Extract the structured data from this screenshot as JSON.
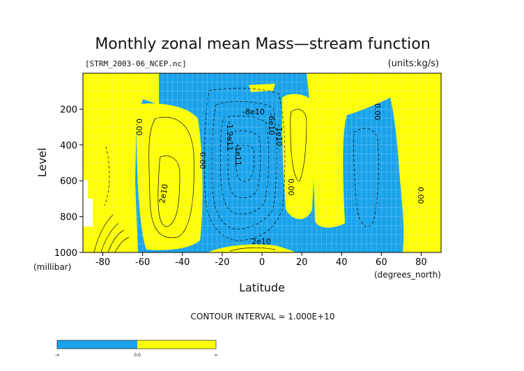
{
  "chart_data": {
    "type": "contour",
    "title": "Monthly zonal mean Mass—stream function",
    "subtitle_left": "[STRM_2003-06_NCEP.nc]",
    "subtitle_right": "(units:kg/s)",
    "xlabel": "Latitude",
    "ylabel": "Level",
    "x_unit": "(degrees_north)",
    "y_unit": "(millibar)",
    "xlim": [
      -90,
      90
    ],
    "ylim": [
      1000,
      0
    ],
    "x_ticks": [
      -80,
      -60,
      -40,
      -20,
      0,
      20,
      40,
      60,
      80
    ],
    "y_ticks": [
      200,
      400,
      600,
      800,
      1000
    ],
    "contour_interval_text": "CONTOUR INTERVAL = 1.000E+10",
    "contour_labels": [
      "0.00",
      "0.00",
      "2e10",
      "-8e10",
      "-1.2e11",
      "-1e11",
      "-6e10",
      "-1e10",
      "0.00",
      "0.00",
      "0.00",
      "2e10"
    ],
    "fill_colors": {
      "negative": "#1aa3ea",
      "positive": "#ffff00"
    },
    "colorbar_labels": [
      "-∞",
      "0.0",
      "∞"
    ],
    "colorbar_levels": [
      -1,
      0,
      1
    ]
  }
}
